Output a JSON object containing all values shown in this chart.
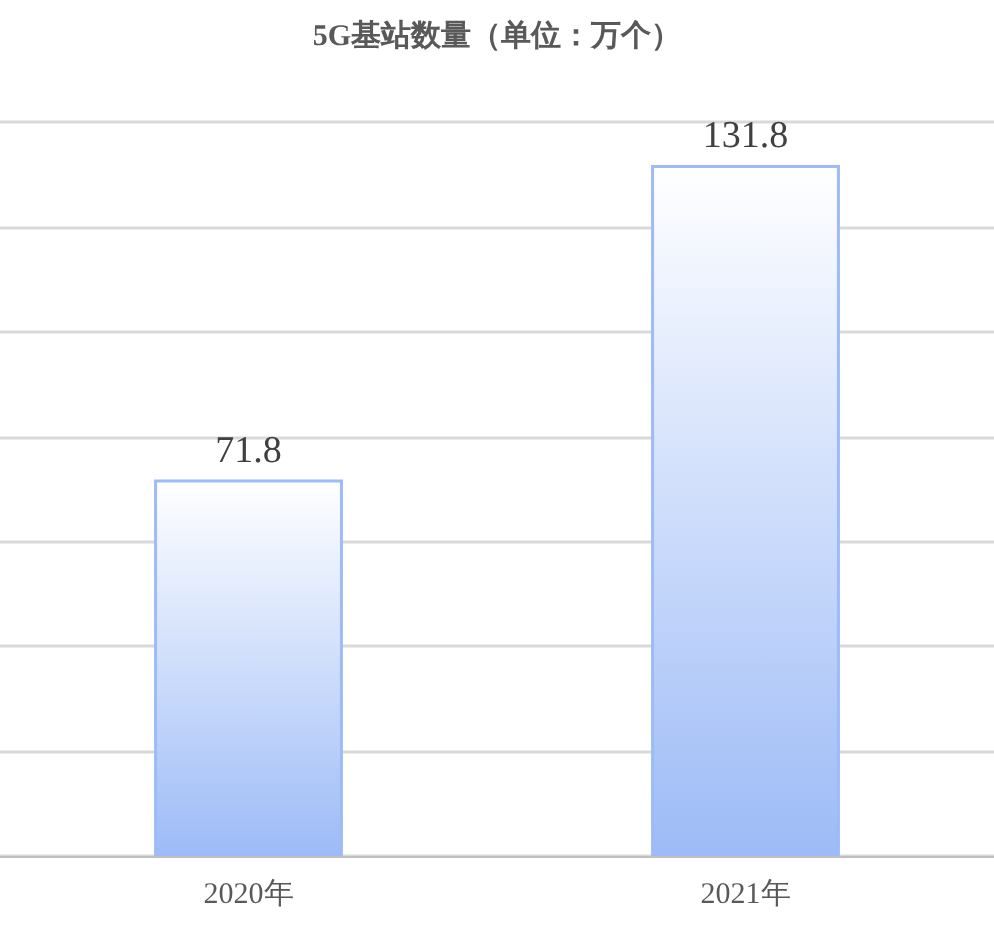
{
  "chart_data": {
    "type": "bar",
    "title": "5G基站数量（单位：万个）",
    "categories": [
      "2020年",
      "2021年"
    ],
    "values": [
      71.8,
      131.8
    ],
    "color": "#9dbbf7",
    "data_labels": true,
    "grid": "y",
    "tick_labels": "x"
  }
}
